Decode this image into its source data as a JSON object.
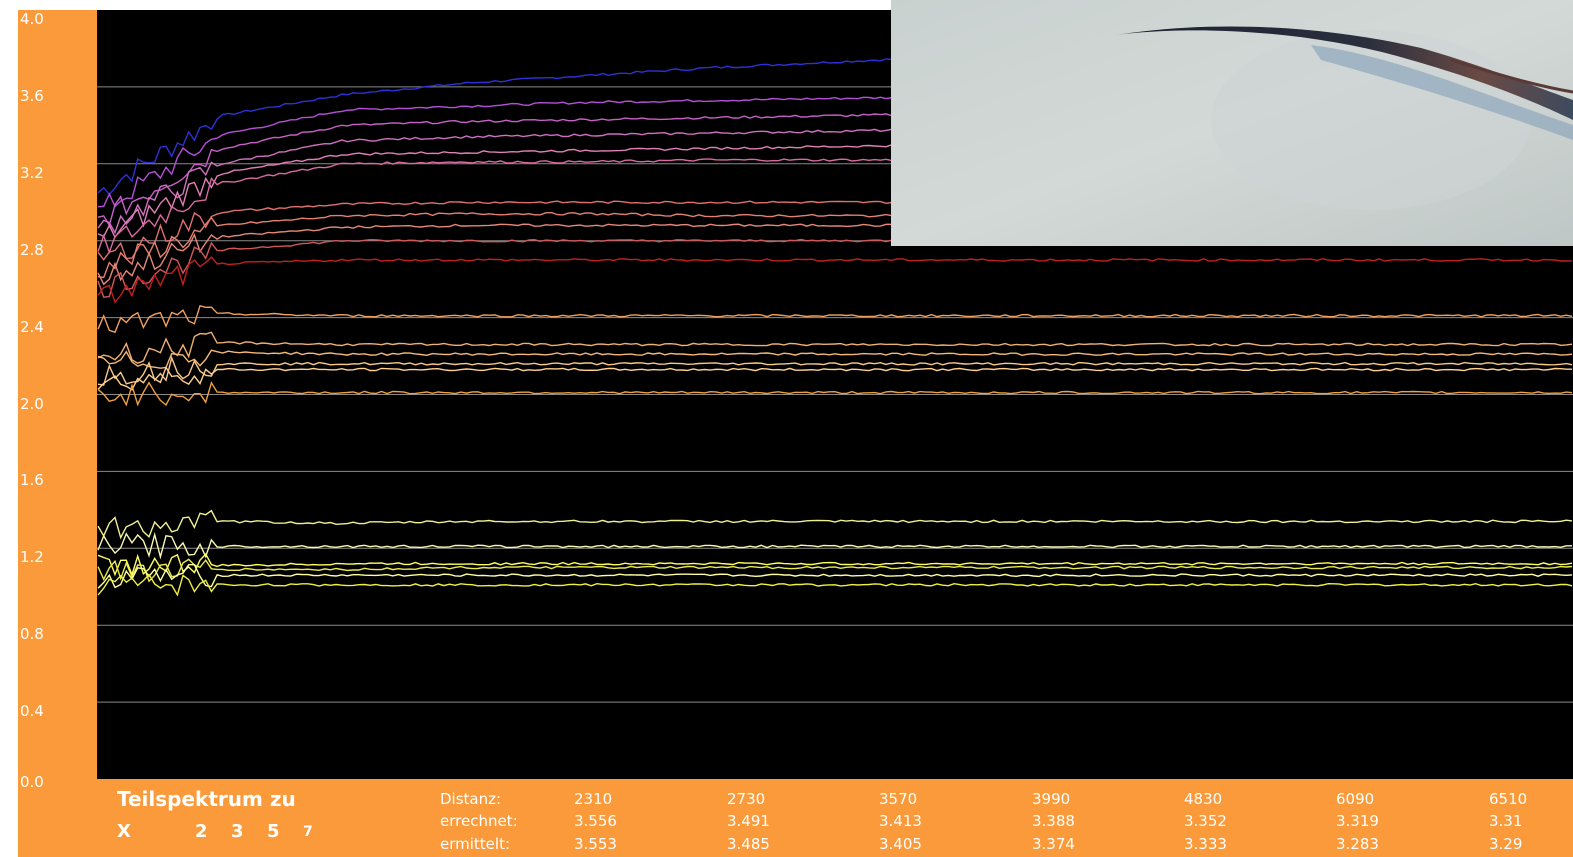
{
  "chart_data": {
    "type": "line",
    "ylim": [
      0,
      4
    ],
    "yticks": [
      "4.0",
      "3.6",
      "3.2",
      "2.8",
      "2.4",
      "2.0",
      "1.6",
      "1.2",
      "0.8",
      "0.4",
      "0.0"
    ],
    "grid": true,
    "background": "#000000",
    "series": [
      {
        "values": [
          3.05,
          3.45,
          3.56,
          3.62,
          3.66,
          3.7,
          3.73,
          3.76,
          3.79,
          3.82,
          3.84,
          3.85,
          3.85
        ],
        "color": "#3030d8"
      },
      {
        "values": [
          2.95,
          3.35,
          3.48,
          3.5,
          3.52,
          3.53,
          3.54,
          3.55,
          3.56,
          3.57,
          3.58,
          3.58,
          3.58
        ],
        "color": "#b450d8"
      },
      {
        "values": [
          2.9,
          3.28,
          3.4,
          3.42,
          3.43,
          3.44,
          3.45,
          3.46,
          3.47,
          3.48,
          3.49,
          3.49,
          3.49
        ],
        "color": "#c860c8"
      },
      {
        "values": [
          2.85,
          3.2,
          3.32,
          3.34,
          3.35,
          3.36,
          3.37,
          3.38,
          3.39,
          3.4,
          3.41,
          3.41,
          3.41
        ],
        "color": "#d070c0"
      },
      {
        "values": [
          2.8,
          3.15,
          3.25,
          3.26,
          3.27,
          3.28,
          3.29,
          3.3,
          3.31,
          3.32,
          3.33,
          3.33,
          3.33
        ],
        "color": "#e080b8"
      },
      {
        "values": [
          2.75,
          3.1,
          3.2,
          3.21,
          3.21,
          3.22,
          3.22,
          3.22,
          3.22,
          3.22,
          3.22,
          3.22,
          3.22
        ],
        "color": "#d86aa0"
      },
      {
        "values": [
          2.7,
          2.95,
          2.99,
          3.0,
          3.0,
          3.0,
          3.0,
          3.0,
          3.0,
          3.0,
          3.0,
          3.0,
          3.0
        ],
        "color": "#e07070"
      },
      {
        "values": [
          2.65,
          2.88,
          2.93,
          2.94,
          2.94,
          2.93,
          2.93,
          2.93,
          2.93,
          2.93,
          2.93,
          2.93,
          2.93
        ],
        "color": "#e58070"
      },
      {
        "values": [
          2.6,
          2.82,
          2.87,
          2.88,
          2.88,
          2.88,
          2.88,
          2.88,
          2.88,
          2.88,
          2.88,
          2.88,
          2.88
        ],
        "color": "#e58878"
      },
      {
        "values": [
          2.55,
          2.75,
          2.8,
          2.8,
          2.8,
          2.8,
          2.8,
          2.8,
          2.8,
          2.8,
          2.8,
          2.8,
          2.8
        ],
        "color": "#d05858"
      },
      {
        "values": [
          2.5,
          2.68,
          2.7,
          2.7,
          2.7,
          2.7,
          2.7,
          2.7,
          2.7,
          2.7,
          2.7,
          2.7,
          2.7
        ],
        "color": "#c02020"
      },
      {
        "values": [
          2.35,
          2.42,
          2.41,
          2.41,
          2.41,
          2.41,
          2.41,
          2.41,
          2.41,
          2.41,
          2.41,
          2.41,
          2.41
        ],
        "color": "#f0a060"
      },
      {
        "values": [
          2.2,
          2.27,
          2.26,
          2.26,
          2.26,
          2.26,
          2.26,
          2.26,
          2.26,
          2.26,
          2.26,
          2.26,
          2.26
        ],
        "color": "#f0b070"
      },
      {
        "values": [
          2.15,
          2.22,
          2.21,
          2.21,
          2.21,
          2.21,
          2.21,
          2.21,
          2.21,
          2.21,
          2.21,
          2.21,
          2.21
        ],
        "color": "#f4b878"
      },
      {
        "values": [
          2.1,
          2.16,
          2.16,
          2.16,
          2.16,
          2.16,
          2.16,
          2.16,
          2.16,
          2.16,
          2.16,
          2.16,
          2.16
        ],
        "color": "#f8c888"
      },
      {
        "values": [
          2.05,
          2.13,
          2.13,
          2.13,
          2.13,
          2.13,
          2.13,
          2.13,
          2.13,
          2.13,
          2.13,
          2.13,
          2.13
        ],
        "color": "#ffd090"
      },
      {
        "values": [
          2.0,
          2.01,
          2.01,
          2.01,
          2.01,
          2.01,
          2.01,
          2.01,
          2.01,
          2.01,
          2.01,
          2.01,
          2.01
        ],
        "color": "#f0a040"
      },
      {
        "values": [
          1.3,
          1.34,
          1.33,
          1.34,
          1.34,
          1.34,
          1.34,
          1.34,
          1.34,
          1.34,
          1.34,
          1.34,
          1.34
        ],
        "color": "#f0f090"
      },
      {
        "values": [
          1.22,
          1.21,
          1.21,
          1.21,
          1.21,
          1.21,
          1.21,
          1.21,
          1.21,
          1.21,
          1.21,
          1.21,
          1.21
        ],
        "color": "#f8f8b0"
      },
      {
        "values": [
          1.12,
          1.11,
          1.12,
          1.12,
          1.12,
          1.12,
          1.12,
          1.12,
          1.12,
          1.12,
          1.12,
          1.12,
          1.12
        ],
        "color": "#ffff60"
      },
      {
        "values": [
          1.08,
          1.09,
          1.09,
          1.1,
          1.1,
          1.1,
          1.1,
          1.1,
          1.1,
          1.1,
          1.1,
          1.1,
          1.1
        ],
        "color": "#e8e850"
      },
      {
        "values": [
          1.05,
          1.06,
          1.06,
          1.06,
          1.06,
          1.06,
          1.06,
          1.06,
          1.06,
          1.06,
          1.06,
          1.06,
          1.06
        ],
        "color": "#ffffa0"
      },
      {
        "values": [
          1.01,
          1.01,
          1.01,
          1.01,
          1.01,
          1.01,
          1.01,
          1.01,
          1.01,
          1.01,
          1.01,
          1.01,
          1.01
        ],
        "color": "#f0f040"
      }
    ]
  },
  "colors": {
    "accent": "#fb9a3a",
    "plot_bg": "#000000",
    "grid": "#8a8a8a",
    "text": "#ffffff"
  },
  "panel": {
    "title": "Teilspektrum zu",
    "ratios": [
      "X",
      "2",
      "3",
      "5",
      "7"
    ]
  },
  "table": {
    "row_labels": [
      "Distanz:",
      "errechnet:",
      "ermittelt:"
    ],
    "columns": [
      {
        "distanz": "2310",
        "errechnet": "3.556",
        "ermittelt": "3.553"
      },
      {
        "distanz": "2730",
        "errechnet": "3.491",
        "ermittelt": "3.485"
      },
      {
        "distanz": "3570",
        "errechnet": "3.413",
        "ermittelt": "3.405"
      },
      {
        "distanz": "3990",
        "errechnet": "3.388",
        "ermittelt": "3.374"
      },
      {
        "distanz": "4830",
        "errechnet": "3.352",
        "ermittelt": "3.333"
      },
      {
        "distanz": "6090",
        "errechnet": "3.319",
        "ermittelt": "3.283"
      },
      {
        "distanz": "6510",
        "errechnet": "3.31",
        "ermittelt": "3.29"
      }
    ]
  },
  "photo": {
    "icon": "bird-wing-photo"
  }
}
